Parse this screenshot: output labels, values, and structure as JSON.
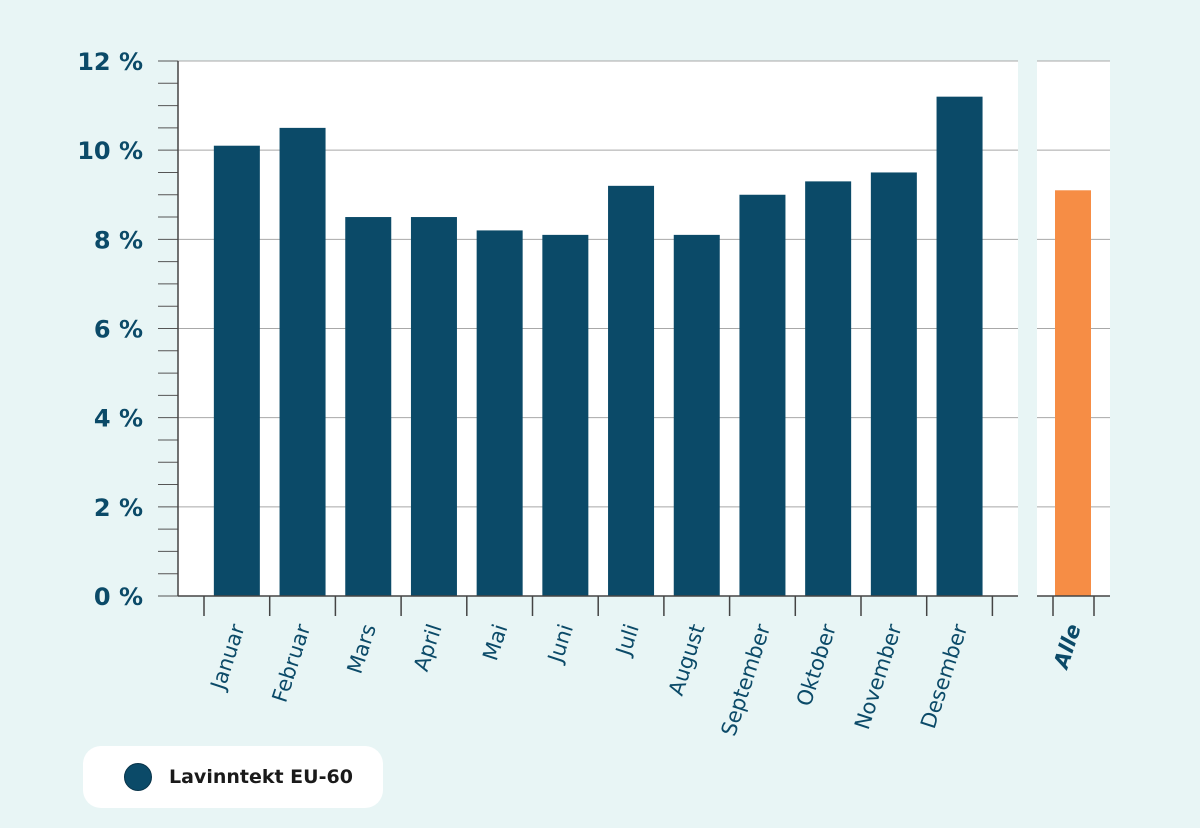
{
  "chart_data": [
    {
      "type": "bar",
      "categories": [
        "Januar",
        "Februar",
        "Mars",
        "April",
        "Mai",
        "Juni",
        "Juli",
        "August",
        "September",
        "Oktober",
        "November",
        "Desember"
      ],
      "series": [
        {
          "name": "Lavinntekt EU-60",
          "values": [
            10.1,
            10.5,
            8.5,
            8.5,
            8.2,
            8.1,
            9.2,
            8.1,
            9.0,
            9.3,
            9.5,
            11.2
          ]
        }
      ],
      "ylim": [
        0,
        12
      ],
      "yticks": [
        "0 %",
        "2 %",
        "4 %",
        "6 %",
        "8 %",
        "10 %",
        "12 %"
      ],
      "grid": true,
      "color": "#0b4a68"
    },
    {
      "type": "bar",
      "categories": [
        "Alle"
      ],
      "values": [
        9.1
      ],
      "ylim": [
        0,
        12
      ],
      "grid": true,
      "color": "#f68d45"
    }
  ],
  "legend": {
    "entries": [
      {
        "label": "Lavinntekt EU-60",
        "color": "#0b4a68"
      }
    ],
    "position": "bottom-left"
  },
  "colors": {
    "background": "#e8f5f5",
    "plot_background": "#ffffff",
    "gridline": "#a8a8a8",
    "text": "#0b4a68",
    "main_bar": "#0b4a68",
    "total_bar": "#f68d45"
  }
}
